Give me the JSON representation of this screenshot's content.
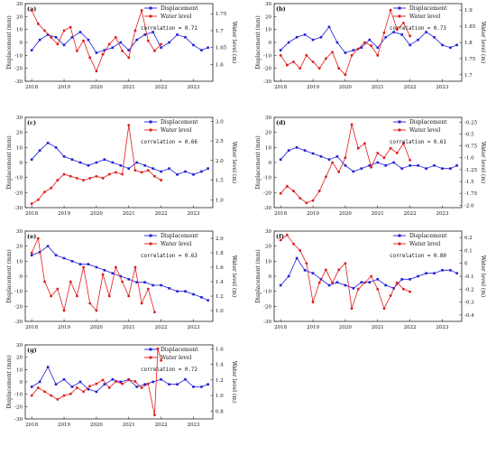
{
  "figure": {
    "title": ""
  },
  "chart_data": [
    {
      "panel": "(a)",
      "type": "line",
      "xlabel": "",
      "ylabel": "Displacement (mm)",
      "y2label": "Water level (m)",
      "xticks": [
        "2018",
        "2019",
        "2020",
        "2021",
        "2022",
        "2023"
      ],
      "xlim": [
        2017.8,
        2023.6
      ],
      "ylim": [
        -30,
        30
      ],
      "yticks": [
        -30,
        -20,
        -10,
        0,
        10,
        20,
        30
      ],
      "y2lim": [
        1.55,
        1.78
      ],
      "y2ticks": [
        1.6,
        1.65,
        1.7,
        1.75
      ],
      "legend": [
        "Displacement",
        "Water level"
      ],
      "legend_loc": "top-right",
      "correlation": "correlation = 0.71",
      "series": [
        {
          "name": "Displacement",
          "axis": "left",
          "color": "#1f1fd6",
          "marker": "square",
          "x": [
            2018.0,
            2018.25,
            2018.5,
            2018.75,
            2019.0,
            2019.25,
            2019.5,
            2019.75,
            2020.0,
            2020.25,
            2020.5,
            2020.75,
            2021.0,
            2021.25,
            2021.5,
            2021.75,
            2022.0,
            2022.25,
            2022.5,
            2022.75,
            2023.0,
            2023.25,
            2023.45
          ],
          "y": [
            -6,
            2,
            6,
            4,
            -2,
            4,
            8,
            2,
            -8,
            -6,
            -4,
            0,
            -6,
            2,
            6,
            8,
            -4,
            0,
            6,
            4,
            -2,
            -6,
            -4
          ]
        },
        {
          "name": "Water level",
          "axis": "right",
          "color": "#e01b1b",
          "marker": "circle",
          "x": [
            2018.0,
            2018.2,
            2018.4,
            2018.6,
            2018.8,
            2019.0,
            2019.2,
            2019.4,
            2019.6,
            2019.8,
            2020.0,
            2020.2,
            2020.4,
            2020.6,
            2020.8,
            2021.0,
            2021.2,
            2021.4,
            2021.6,
            2021.8,
            2022.0
          ],
          "y": [
            1.76,
            1.72,
            1.7,
            1.68,
            1.66,
            1.7,
            1.71,
            1.64,
            1.67,
            1.62,
            1.58,
            1.63,
            1.66,
            1.68,
            1.64,
            1.62,
            1.7,
            1.76,
            1.67,
            1.64,
            1.66
          ]
        }
      ]
    },
    {
      "panel": "(b)",
      "type": "line",
      "xlabel": "",
      "ylabel": "Displacement (mm)",
      "y2label": "Water level (m)",
      "xticks": [
        "2018",
        "2019",
        "2020",
        "2021",
        "2022",
        "2023"
      ],
      "xlim": [
        2017.8,
        2023.6
      ],
      "ylim": [
        -30,
        30
      ],
      "yticks": [
        -30,
        -20,
        -10,
        0,
        10,
        20,
        30
      ],
      "y2lim": [
        1.68,
        1.92
      ],
      "y2ticks": [
        1.7,
        1.75,
        1.8,
        1.85,
        1.9
      ],
      "legend": [
        "Displacement",
        "Water level"
      ],
      "legend_loc": "top-right",
      "correlation": "correlation = 0.73",
      "series": [
        {
          "name": "Displacement",
          "axis": "left",
          "color": "#1f1fd6",
          "marker": "square",
          "x": [
            2018.0,
            2018.25,
            2018.5,
            2018.75,
            2019.0,
            2019.25,
            2019.5,
            2019.75,
            2020.0,
            2020.25,
            2020.5,
            2020.75,
            2021.0,
            2021.25,
            2021.5,
            2021.75,
            2022.0,
            2022.25,
            2022.5,
            2022.75,
            2023.0,
            2023.25,
            2023.45
          ],
          "y": [
            -6,
            0,
            4,
            6,
            2,
            4,
            12,
            0,
            -8,
            -6,
            -4,
            2,
            -4,
            4,
            8,
            6,
            -2,
            2,
            8,
            4,
            -2,
            -4,
            -2
          ]
        },
        {
          "name": "Water level",
          "axis": "right",
          "color": "#e01b1b",
          "marker": "circle",
          "x": [
            2018.0,
            2018.2,
            2018.4,
            2018.6,
            2018.8,
            2019.0,
            2019.2,
            2019.4,
            2019.6,
            2019.8,
            2020.0,
            2020.2,
            2020.4,
            2020.6,
            2020.8,
            2021.0,
            2021.2,
            2021.4,
            2021.6,
            2021.8,
            2022.0
          ],
          "y": [
            1.76,
            1.73,
            1.74,
            1.72,
            1.76,
            1.74,
            1.72,
            1.75,
            1.77,
            1.72,
            1.7,
            1.76,
            1.78,
            1.8,
            1.79,
            1.76,
            1.83,
            1.9,
            1.84,
            1.86,
            1.82
          ]
        }
      ]
    },
    {
      "panel": "(c)",
      "type": "line",
      "xlabel": "",
      "ylabel": "Displacement (mm)",
      "y2label": "Water level (m)",
      "xticks": [
        "2018",
        "2019",
        "2020",
        "2021",
        "2022",
        "2023"
      ],
      "xlim": [
        2017.8,
        2023.6
      ],
      "ylim": [
        -30,
        30
      ],
      "yticks": [
        -30,
        -20,
        -10,
        0,
        10,
        20,
        30
      ],
      "y2lim": [
        0.8,
        3.1
      ],
      "y2ticks": [
        1.0,
        1.5,
        2.0,
        2.5,
        3.0
      ],
      "legend": [
        "Displacement",
        "Water level"
      ],
      "legend_loc": "top-right",
      "correlation": "correlation = 0.66",
      "series": [
        {
          "name": "Displacement",
          "axis": "left",
          "color": "#1f1fd6",
          "marker": "square",
          "x": [
            2018.0,
            2018.25,
            2018.5,
            2018.75,
            2019.0,
            2019.25,
            2019.5,
            2019.75,
            2020.0,
            2020.25,
            2020.5,
            2020.75,
            2021.0,
            2021.25,
            2021.5,
            2021.75,
            2022.0,
            2022.25,
            2022.5,
            2022.75,
            2023.0,
            2023.25,
            2023.45
          ],
          "y": [
            2,
            8,
            13,
            10,
            4,
            2,
            0,
            -2,
            0,
            2,
            0,
            -2,
            -4,
            0,
            -2,
            -4,
            -6,
            -4,
            -8,
            -6,
            -8,
            -6,
            -4
          ]
        },
        {
          "name": "Water level",
          "axis": "right",
          "color": "#e01b1b",
          "marker": "circle",
          "x": [
            2018.0,
            2018.2,
            2018.4,
            2018.6,
            2018.8,
            2019.0,
            2019.2,
            2019.4,
            2019.6,
            2019.8,
            2020.0,
            2020.2,
            2020.4,
            2020.6,
            2020.8,
            2021.0,
            2021.2,
            2021.4,
            2021.6,
            2021.8,
            2022.0
          ],
          "y": [
            0.9,
            1.0,
            1.2,
            1.3,
            1.5,
            1.65,
            1.6,
            1.55,
            1.5,
            1.55,
            1.6,
            1.55,
            1.65,
            1.7,
            1.65,
            2.9,
            1.75,
            1.7,
            1.75,
            1.6,
            1.5
          ]
        }
      ]
    },
    {
      "panel": "(d)",
      "type": "line",
      "xlabel": "",
      "ylabel": "Displacement (mm)",
      "y2label": "Water level (m)",
      "xticks": [
        "2018",
        "2019",
        "2020",
        "2021",
        "2022",
        "2023"
      ],
      "xlim": [
        2017.8,
        2023.6
      ],
      "ylim": [
        -30,
        30
      ],
      "yticks": [
        -30,
        -20,
        -10,
        0,
        10,
        20,
        30
      ],
      "y2lim": [
        -2.05,
        -0.15
      ],
      "y2ticks": [
        -0.25,
        -0.5,
        -0.75,
        -1.0,
        -1.25,
        -1.5,
        -1.75,
        -2.0
      ],
      "legend": [
        "Displacement",
        "Water level"
      ],
      "legend_loc": "top-right",
      "correlation": "correlation = 0.61",
      "series": [
        {
          "name": "Displacement",
          "axis": "left",
          "color": "#1f1fd6",
          "marker": "square",
          "x": [
            2018.0,
            2018.25,
            2018.5,
            2018.75,
            2019.0,
            2019.25,
            2019.5,
            2019.75,
            2020.0,
            2020.25,
            2020.5,
            2020.75,
            2021.0,
            2021.25,
            2021.5,
            2021.75,
            2022.0,
            2022.25,
            2022.5,
            2022.75,
            2023.0,
            2023.25,
            2023.45
          ],
          "y": [
            2,
            8,
            10,
            8,
            6,
            4,
            2,
            4,
            -2,
            -6,
            -4,
            -2,
            0,
            -2,
            0,
            -4,
            -2,
            -2,
            -4,
            -2,
            -4,
            -4,
            -2
          ]
        },
        {
          "name": "Water level",
          "axis": "right",
          "color": "#e01b1b",
          "marker": "circle",
          "x": [
            2018.0,
            2018.2,
            2018.4,
            2018.6,
            2018.8,
            2019.0,
            2019.2,
            2019.4,
            2019.6,
            2019.8,
            2020.0,
            2020.2,
            2020.4,
            2020.6,
            2020.8,
            2021.0,
            2021.2,
            2021.4,
            2021.6,
            2021.8,
            2022.0
          ],
          "y": [
            -1.75,
            -1.6,
            -1.7,
            -1.85,
            -1.95,
            -1.9,
            -1.7,
            -1.4,
            -1.1,
            -1.3,
            -1.0,
            -0.3,
            -0.8,
            -0.7,
            -1.2,
            -0.9,
            -1.0,
            -0.8,
            -0.9,
            -0.7,
            -1.05
          ]
        }
      ]
    },
    {
      "panel": "(e)",
      "type": "line",
      "xlabel": "",
      "ylabel": "Displacement (mm)",
      "y2label": "Water level (m)",
      "xticks": [
        "2018",
        "2019",
        "2020",
        "2021",
        "2022",
        "2023"
      ],
      "xlim": [
        2017.8,
        2023.6
      ],
      "ylim": [
        -30,
        30
      ],
      "yticks": [
        -30,
        -20,
        -10,
        0,
        10,
        20,
        30
      ],
      "y2lim": [
        0.85,
        2.1
      ],
      "y2ticks": [
        1.0,
        1.2,
        1.4,
        1.6,
        1.8,
        2.0
      ],
      "legend": [
        "Displacement",
        "Water level"
      ],
      "legend_loc": "top-right",
      "correlation": "correlation = 0.63",
      "series": [
        {
          "name": "Displacement",
          "axis": "left",
          "color": "#1f1fd6",
          "marker": "square",
          "x": [
            2018.0,
            2018.25,
            2018.5,
            2018.75,
            2019.0,
            2019.25,
            2019.5,
            2019.75,
            2020.0,
            2020.25,
            2020.5,
            2020.75,
            2021.0,
            2021.25,
            2021.5,
            2021.75,
            2022.0,
            2022.25,
            2022.5,
            2022.75,
            2023.0,
            2023.25,
            2023.45
          ],
          "y": [
            14,
            16,
            20,
            14,
            12,
            10,
            8,
            8,
            6,
            4,
            2,
            0,
            -2,
            -4,
            -4,
            -6,
            -6,
            -8,
            -10,
            -10,
            -12,
            -14,
            -16
          ]
        },
        {
          "name": "Water level",
          "axis": "right",
          "color": "#e01b1b",
          "marker": "circle",
          "x": [
            2018.0,
            2018.2,
            2018.4,
            2018.6,
            2018.8,
            2019.0,
            2019.2,
            2019.4,
            2019.6,
            2019.8,
            2020.0,
            2020.2,
            2020.4,
            2020.6,
            2020.8,
            2021.0,
            2021.2,
            2021.4,
            2021.6,
            2021.8
          ],
          "y": [
            1.8,
            2.0,
            1.4,
            1.2,
            1.3,
            1.0,
            1.4,
            1.2,
            1.6,
            1.1,
            1.0,
            1.5,
            1.2,
            1.6,
            1.4,
            1.2,
            1.6,
            1.1,
            1.3,
            0.98
          ]
        }
      ]
    },
    {
      "panel": "(f)",
      "type": "line",
      "xlabel": "",
      "ylabel": "Displacement (mm)",
      "y2label": "Water level (m)",
      "xticks": [
        "2018",
        "2019",
        "2020",
        "2021",
        "2022",
        "2023"
      ],
      "xlim": [
        2017.8,
        2023.6
      ],
      "ylim": [
        -30,
        30
      ],
      "yticks": [
        -30,
        -20,
        -10,
        0,
        10,
        20,
        30
      ],
      "y2lim": [
        -0.45,
        0.25
      ],
      "y2ticks": [
        0.2,
        0.1,
        0.0,
        -0.1,
        -0.2,
        -0.3,
        -0.4
      ],
      "legend": [
        "Displacement",
        "Water level"
      ],
      "legend_loc": "top-right",
      "correlation": "correlation = 0.80",
      "series": [
        {
          "name": "Displacement",
          "axis": "left",
          "color": "#1f1fd6",
          "marker": "square",
          "x": [
            2018.0,
            2018.25,
            2018.5,
            2018.75,
            2019.0,
            2019.25,
            2019.5,
            2019.75,
            2020.0,
            2020.25,
            2020.5,
            2020.75,
            2021.0,
            2021.25,
            2021.5,
            2021.75,
            2022.0,
            2022.25,
            2022.5,
            2022.75,
            2023.0,
            2023.25,
            2023.45
          ],
          "y": [
            -6,
            0,
            12,
            4,
            2,
            -2,
            -6,
            -4,
            -6,
            -8,
            -4,
            -4,
            -2,
            -6,
            -8,
            -2,
            -2,
            0,
            2,
            2,
            4,
            4,
            2
          ]
        },
        {
          "name": "Water level",
          "axis": "right",
          "color": "#e01b1b",
          "marker": "circle",
          "x": [
            2018.0,
            2018.2,
            2018.4,
            2018.6,
            2018.8,
            2019.0,
            2019.2,
            2019.4,
            2019.6,
            2019.8,
            2020.0,
            2020.2,
            2020.4,
            2020.6,
            2020.8,
            2021.0,
            2021.2,
            2021.4,
            2021.6,
            2021.8,
            2022.0
          ],
          "y": [
            0.18,
            0.22,
            0.15,
            0.1,
            0.0,
            -0.3,
            -0.15,
            -0.05,
            -0.15,
            -0.05,
            0.0,
            -0.35,
            -0.2,
            -0.15,
            -0.1,
            -0.2,
            -0.35,
            -0.25,
            -0.15,
            -0.2,
            -0.22
          ]
        }
      ]
    },
    {
      "panel": "(g)",
      "type": "line",
      "xlabel": "",
      "ylabel": "Displacement (mm)",
      "y2label": "Water level (m)",
      "xticks": [
        "2018",
        "2019",
        "2020",
        "2021",
        "2022",
        "2023"
      ],
      "xlim": [
        2017.8,
        2023.6
      ],
      "ylim": [
        -30,
        30
      ],
      "yticks": [
        -30,
        -20,
        -10,
        0,
        10,
        20,
        30
      ],
      "y2lim": [
        0.7,
        1.65
      ],
      "y2ticks": [
        0.8,
        1.0,
        1.2,
        1.4,
        1.6
      ],
      "legend": [
        "Displacement",
        "Water level"
      ],
      "legend_loc": "top-right",
      "correlation": "correlation = 0.72",
      "series": [
        {
          "name": "Displacement",
          "axis": "left",
          "color": "#1f1fd6",
          "marker": "square",
          "x": [
            2018.0,
            2018.25,
            2018.5,
            2018.75,
            2019.0,
            2019.25,
            2019.5,
            2019.75,
            2020.0,
            2020.25,
            2020.5,
            2020.75,
            2021.0,
            2021.25,
            2021.5,
            2021.75,
            2022.0,
            2022.25,
            2022.5,
            2022.75,
            2023.0,
            2023.25,
            2023.45
          ],
          "y": [
            -4,
            0,
            12,
            -2,
            2,
            -4,
            0,
            -6,
            -8,
            -2,
            2,
            0,
            2,
            -4,
            -2,
            0,
            2,
            -2,
            -2,
            2,
            -4,
            -4,
            -2
          ]
        },
        {
          "name": "Water level",
          "axis": "right",
          "color": "#e01b1b",
          "marker": "circle",
          "x": [
            2018.0,
            2018.2,
            2018.4,
            2018.6,
            2018.8,
            2019.0,
            2019.2,
            2019.4,
            2019.6,
            2019.8,
            2020.0,
            2020.2,
            2020.4,
            2020.6,
            2020.8,
            2021.0,
            2021.2,
            2021.4,
            2021.6,
            2021.8,
            2021.9,
            2022.0
          ],
          "y": [
            1.0,
            1.1,
            1.05,
            1.0,
            0.95,
            1.0,
            1.02,
            1.1,
            1.05,
            1.12,
            1.15,
            1.2,
            1.1,
            1.18,
            1.15,
            1.2,
            1.18,
            1.1,
            1.15,
            0.75,
            1.6,
            1.45
          ]
        }
      ]
    }
  ]
}
